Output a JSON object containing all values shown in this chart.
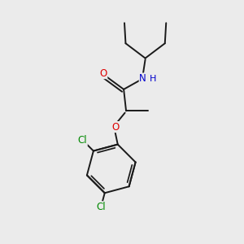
{
  "bg_color": "#ebebeb",
  "bond_color": "#1a1a1a",
  "bond_width": 1.4,
  "atom_colors": {
    "O": "#dd0000",
    "N": "#0000cc",
    "Cl": "#008800",
    "H": "#1a1a1a"
  },
  "font_size": 8.5,
  "figsize": [
    3.0,
    3.0
  ],
  "dpi": 100
}
